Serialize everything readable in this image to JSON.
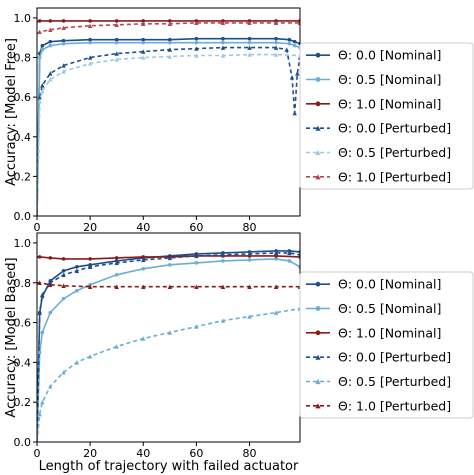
{
  "chart_data": [
    {
      "type": "line",
      "ylabel": "Accuracy: [Model Free]",
      "xlabel": "",
      "xlim": [
        0,
        99
      ],
      "ylim": [
        0,
        1.05
      ],
      "xticks": [
        0,
        20,
        40,
        60,
        80
      ],
      "yticks": [
        0.0,
        0.2,
        0.4,
        0.6,
        0.8,
        1.0
      ],
      "ytick_labels": [
        "0.0",
        "0.2",
        "0.4",
        "0.6",
        "0.8",
        "1.0"
      ],
      "grid": false,
      "legend_position": "right",
      "series": [
        {
          "name": "Θ: 0.0 [Nominal]",
          "color": "#1f4e8c",
          "dash": "solid",
          "marker": "circle",
          "x": [
            0,
            1,
            2,
            5,
            10,
            20,
            30,
            40,
            50,
            60,
            70,
            80,
            90,
            95,
            97,
            99
          ],
          "y": [
            0.0,
            0.82,
            0.86,
            0.88,
            0.885,
            0.89,
            0.89,
            0.89,
            0.89,
            0.895,
            0.895,
            0.895,
            0.895,
            0.89,
            0.88,
            0.87
          ]
        },
        {
          "name": "Θ: 0.5 [Nominal]",
          "color": "#6aaed6",
          "dash": "solid",
          "marker": "circle",
          "x": [
            0,
            1,
            2,
            5,
            10,
            20,
            30,
            40,
            50,
            60,
            70,
            80,
            90,
            95,
            97,
            99
          ],
          "y": [
            0.0,
            0.8,
            0.84,
            0.86,
            0.87,
            0.875,
            0.875,
            0.875,
            0.875,
            0.875,
            0.875,
            0.875,
            0.875,
            0.87,
            0.86,
            0.85
          ]
        },
        {
          "name": "Θ: 1.0 [Nominal]",
          "color": "#8b1a1a",
          "dash": "solid",
          "marker": "circle",
          "x": [
            0,
            1,
            5,
            10,
            20,
            30,
            40,
            50,
            60,
            70,
            80,
            90,
            99
          ],
          "y": [
            0.98,
            0.985,
            0.985,
            0.985,
            0.985,
            0.985,
            0.985,
            0.985,
            0.985,
            0.985,
            0.985,
            0.985,
            0.985
          ]
        },
        {
          "name": "Θ: 0.0 [Perturbed]",
          "color": "#1f4e8c",
          "dash": "dashed",
          "marker": "triangle",
          "x": [
            0,
            1,
            2,
            5,
            10,
            20,
            30,
            40,
            50,
            60,
            70,
            80,
            90,
            94,
            96,
            97,
            98,
            99
          ],
          "y": [
            0.0,
            0.6,
            0.66,
            0.72,
            0.76,
            0.8,
            0.82,
            0.83,
            0.84,
            0.845,
            0.85,
            0.85,
            0.85,
            0.84,
            0.7,
            0.52,
            0.72,
            0.8
          ]
        },
        {
          "name": "Θ: 0.5 [Perturbed]",
          "color": "#9ecae1",
          "dash": "dashed",
          "marker": "triangle",
          "x": [
            0,
            1,
            2,
            5,
            10,
            20,
            30,
            40,
            50,
            60,
            70,
            80,
            90,
            99
          ],
          "y": [
            0.0,
            0.58,
            0.63,
            0.69,
            0.73,
            0.77,
            0.79,
            0.8,
            0.805,
            0.81,
            0.81,
            0.815,
            0.815,
            0.81
          ]
        },
        {
          "name": "Θ: 1.0 [Perturbed]",
          "color": "#b5484f",
          "dash": "dashed",
          "marker": "triangle",
          "x": [
            0,
            1,
            5,
            10,
            20,
            30,
            40,
            50,
            60,
            70,
            80,
            90,
            99
          ],
          "y": [
            0.92,
            0.93,
            0.94,
            0.95,
            0.96,
            0.965,
            0.97,
            0.97,
            0.975,
            0.975,
            0.975,
            0.975,
            0.975
          ]
        }
      ]
    },
    {
      "type": "line",
      "ylabel": "Accuracy: [Model Based]",
      "xlabel": "Length of trajectory with failed actuator",
      "xlim": [
        0,
        99
      ],
      "ylim": [
        0,
        1.05
      ],
      "xticks": [
        0,
        20,
        40,
        60,
        80
      ],
      "yticks": [
        0.0,
        0.2,
        0.4,
        0.6,
        0.8,
        1.0
      ],
      "ytick_labels": [
        "0.0",
        "0.2",
        "0.4",
        "0.6",
        "0.8",
        "1.0"
      ],
      "grid": false,
      "legend_position": "right",
      "series": [
        {
          "name": "Θ: 0.0 [Nominal]",
          "color": "#1f4e8c",
          "dash": "solid",
          "marker": "circle",
          "x": [
            0,
            1,
            2,
            5,
            10,
            15,
            20,
            30,
            40,
            50,
            60,
            70,
            80,
            90,
            95,
            99
          ],
          "y": [
            0.0,
            0.65,
            0.73,
            0.81,
            0.86,
            0.88,
            0.89,
            0.91,
            0.925,
            0.935,
            0.945,
            0.95,
            0.955,
            0.96,
            0.96,
            0.955
          ]
        },
        {
          "name": "Θ: 0.5 [Nominal]",
          "color": "#6aaed6",
          "dash": "solid",
          "marker": "circle",
          "x": [
            0,
            1,
            2,
            5,
            10,
            15,
            20,
            30,
            40,
            50,
            60,
            70,
            80,
            90,
            95,
            99
          ],
          "y": [
            0.0,
            0.45,
            0.55,
            0.65,
            0.72,
            0.76,
            0.79,
            0.84,
            0.87,
            0.89,
            0.9,
            0.91,
            0.915,
            0.92,
            0.91,
            0.88
          ]
        },
        {
          "name": "Θ: 1.0 [Nominal]",
          "color": "#8b1a1a",
          "dash": "solid",
          "marker": "circle",
          "x": [
            0,
            1,
            5,
            10,
            20,
            30,
            40,
            50,
            60,
            70,
            80,
            90,
            99
          ],
          "y": [
            0.93,
            0.93,
            0.925,
            0.92,
            0.92,
            0.925,
            0.93,
            0.93,
            0.935,
            0.935,
            0.935,
            0.935,
            0.93
          ]
        },
        {
          "name": "Θ: 0.0 [Perturbed]",
          "color": "#1f4e8c",
          "dash": "dashed",
          "marker": "triangle",
          "x": [
            0,
            1,
            2,
            5,
            10,
            15,
            20,
            30,
            40,
            50,
            60,
            70,
            80,
            90,
            95,
            99
          ],
          "y": [
            0.0,
            0.65,
            0.74,
            0.8,
            0.84,
            0.86,
            0.88,
            0.9,
            0.915,
            0.925,
            0.935,
            0.94,
            0.945,
            0.95,
            0.95,
            0.94
          ]
        },
        {
          "name": "Θ: 0.5 [Perturbed]",
          "color": "#6aaed6",
          "dash": "dashed",
          "marker": "triangle",
          "x": [
            0,
            1,
            2,
            5,
            10,
            15,
            20,
            30,
            40,
            50,
            60,
            70,
            80,
            90,
            99
          ],
          "y": [
            0.0,
            0.14,
            0.2,
            0.28,
            0.35,
            0.4,
            0.43,
            0.48,
            0.52,
            0.55,
            0.58,
            0.61,
            0.63,
            0.65,
            0.67
          ]
        },
        {
          "name": "Θ: 1.0 [Perturbed]",
          "color": "#8b1a1a",
          "dash": "dashed",
          "marker": "triangle",
          "x": [
            0,
            1,
            5,
            10,
            20,
            30,
            40,
            50,
            60,
            70,
            80,
            90,
            99
          ],
          "y": [
            0.8,
            0.8,
            0.79,
            0.785,
            0.78,
            0.78,
            0.78,
            0.78,
            0.78,
            0.78,
            0.78,
            0.78,
            0.78
          ]
        }
      ]
    }
  ]
}
